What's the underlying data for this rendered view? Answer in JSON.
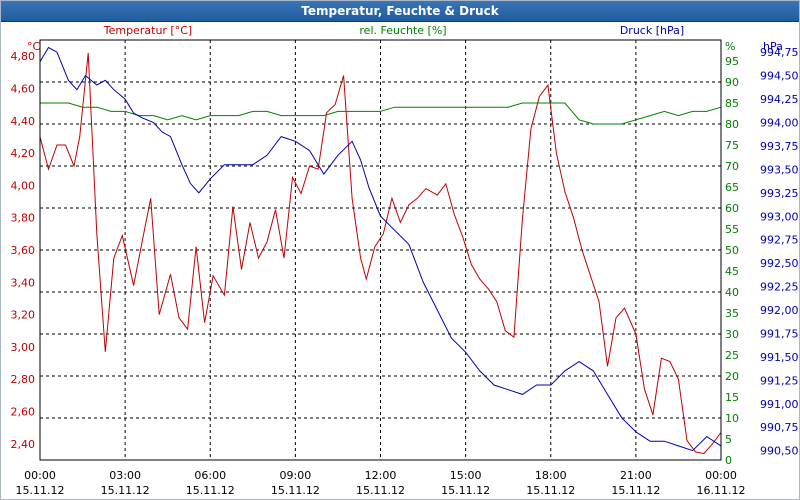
{
  "window": {
    "title": "Temperatur, Feuchte & Druck"
  },
  "colors": {
    "temperature": "#c00000",
    "humidity": "#008000",
    "pressure": "#0000b0",
    "title_bar": "#2a67a9",
    "grid": "#000000"
  },
  "chart_data": {
    "type": "line",
    "title": "Temperatur, Feuchte & Druck",
    "grid": true,
    "x": {
      "tick_times": [
        "00:00",
        "03:00",
        "06:00",
        "09:00",
        "12:00",
        "15:00",
        "18:00",
        "21:00",
        "00:00"
      ],
      "tick_dates": [
        "15.11.12",
        "15.11.12",
        "15.11.12",
        "15.11.12",
        "15.11.12",
        "15.11.12",
        "15.11.12",
        "15.11.12",
        "16.11.12"
      ],
      "range": [
        "15.11.12 00:00",
        "16.11.12 00:00"
      ]
    },
    "axes": {
      "temperature": {
        "label": "Temperatur [°C]",
        "unit": "°C",
        "range": [
          2.3,
          4.9
        ],
        "ticks": [
          "4,80",
          "4,60",
          "4,40",
          "4,20",
          "4,00",
          "3,80",
          "3,60",
          "3,40",
          "3,20",
          "3,00",
          "2,80",
          "2,60",
          "2,40"
        ]
      },
      "humidity": {
        "label": "rel. Feuchte [%]",
        "unit": "%",
        "range": [
          0,
          100
        ],
        "ticks": [
          "95",
          "90",
          "85",
          "80",
          "75",
          "70",
          "65",
          "60",
          "55",
          "50",
          "45",
          "40",
          "35",
          "30",
          "25",
          "20",
          "15",
          "10",
          "5",
          "0"
        ]
      },
      "pressure": {
        "label": "Druck [hPa]",
        "unit": "hPa",
        "range": [
          990.4,
          994.88
        ],
        "ticks": [
          "994,75",
          "994,50",
          "994,25",
          "994,00",
          "993,75",
          "993,50",
          "993,25",
          "993,00",
          "992,75",
          "992,50",
          "992,25",
          "992,00",
          "991,75",
          "991,50",
          "991,25",
          "991,00",
          "990,75",
          "990,50"
        ]
      }
    },
    "series": [
      {
        "name": "Temperatur [°C]",
        "axis": "temperature",
        "x_hours": [
          0,
          0.3,
          0.6,
          0.9,
          1.2,
          1.4,
          1.7,
          2.0,
          2.3,
          2.6,
          2.9,
          3.3,
          3.6,
          3.9,
          4.2,
          4.6,
          4.9,
          5.2,
          5.5,
          5.8,
          6.1,
          6.5,
          6.8,
          7.1,
          7.4,
          7.7,
          8.0,
          8.3,
          8.6,
          8.9,
          9.2,
          9.5,
          9.8,
          10.1,
          10.4,
          10.7,
          11.0,
          11.3,
          11.5,
          11.8,
          12.1,
          12.4,
          12.7,
          13.0,
          13.3,
          13.6,
          14.0,
          14.3,
          14.6,
          14.9,
          15.2,
          15.5,
          15.8,
          16.1,
          16.4,
          16.7,
          17.0,
          17.3,
          17.6,
          17.9,
          18.2,
          18.5,
          18.8,
          19.1,
          19.4,
          19.7,
          20.0,
          20.3,
          20.6,
          21.0,
          21.3,
          21.6,
          21.9,
          22.2,
          22.5,
          22.8,
          23.1,
          23.4,
          23.7,
          24.0
        ],
        "values": [
          4.3,
          4.1,
          4.25,
          4.25,
          4.12,
          4.3,
          4.82,
          3.7,
          2.97,
          3.55,
          3.69,
          3.38,
          3.65,
          3.92,
          3.2,
          3.45,
          3.18,
          3.11,
          3.62,
          3.15,
          3.44,
          3.32,
          3.87,
          3.48,
          3.77,
          3.55,
          3.65,
          3.85,
          3.55,
          4.05,
          3.95,
          4.12,
          4.1,
          4.45,
          4.5,
          4.68,
          3.92,
          3.55,
          3.42,
          3.62,
          3.7,
          3.92,
          3.77,
          3.88,
          3.92,
          3.98,
          3.94,
          4.01,
          3.82,
          3.68,
          3.51,
          3.42,
          3.36,
          3.28,
          3.1,
          3.06,
          3.79,
          4.35,
          4.55,
          4.62,
          4.2,
          3.96,
          3.8,
          3.6,
          3.44,
          3.28,
          2.88,
          3.18,
          3.24,
          3.08,
          2.74,
          2.58,
          2.93,
          2.91,
          2.8,
          2.42,
          2.35,
          2.34,
          2.4,
          2.47
        ]
      },
      {
        "name": "rel. Feuchte [%]",
        "axis": "humidity",
        "x_hours": [
          0,
          0.5,
          1.0,
          1.5,
          2.0,
          2.5,
          3.0,
          3.5,
          4.0,
          4.5,
          5.0,
          5.5,
          6.0,
          6.5,
          7.0,
          7.5,
          8.0,
          8.5,
          9.0,
          9.5,
          10.0,
          10.5,
          11.0,
          11.5,
          12.0,
          12.5,
          13.0,
          13.5,
          14.0,
          14.5,
          15.0,
          15.5,
          16.0,
          16.5,
          17.0,
          17.5,
          18.0,
          18.5,
          19.0,
          19.5,
          20.0,
          20.5,
          21.0,
          21.5,
          22.0,
          22.5,
          23.0,
          23.5,
          24.0
        ],
        "values": [
          85,
          85,
          85,
          84,
          84,
          83,
          83,
          82,
          82,
          81,
          82,
          81,
          82,
          82,
          82,
          83,
          83,
          82,
          82,
          82,
          82,
          83,
          83,
          83,
          83,
          84,
          84,
          84,
          84,
          84,
          84,
          84,
          84,
          84,
          85,
          85,
          85,
          85,
          81,
          80,
          80,
          80,
          81,
          82,
          83,
          82,
          83,
          83,
          84
        ]
      },
      {
        "name": "Druck [hPa]",
        "axis": "pressure",
        "x_hours": [
          0,
          0.3,
          0.6,
          1.0,
          1.3,
          1.6,
          2.0,
          2.3,
          2.6,
          3.0,
          3.3,
          3.6,
          4.0,
          4.3,
          4.6,
          5.0,
          5.3,
          5.6,
          6.0,
          6.5,
          7.0,
          7.5,
          8.0,
          8.5,
          9.0,
          9.5,
          10.0,
          10.5,
          11.0,
          11.3,
          11.6,
          12.0,
          12.5,
          13.0,
          13.5,
          14.0,
          14.5,
          15.0,
          15.5,
          16.0,
          16.5,
          17.0,
          17.5,
          18.0,
          18.5,
          19.0,
          19.5,
          20.0,
          20.5,
          21.0,
          21.5,
          22.0,
          22.5,
          23.0,
          23.5,
          24.0
        ],
        "values": [
          994.65,
          994.8,
          994.75,
          994.45,
          994.35,
          994.5,
          994.4,
          994.45,
          994.35,
          994.25,
          994.1,
          994.05,
          994.0,
          993.9,
          993.85,
          993.55,
          993.35,
          993.25,
          993.4,
          993.55,
          993.55,
          993.55,
          993.65,
          993.85,
          993.8,
          993.7,
          993.45,
          993.65,
          993.8,
          993.6,
          993.3,
          993.0,
          992.85,
          992.7,
          992.3,
          992.0,
          991.7,
          991.55,
          991.35,
          991.2,
          991.15,
          991.1,
          991.2,
          991.2,
          991.35,
          991.45,
          991.35,
          991.1,
          990.85,
          990.7,
          990.6,
          990.6,
          990.55,
          990.5,
          990.65,
          990.55
        ]
      }
    ]
  }
}
